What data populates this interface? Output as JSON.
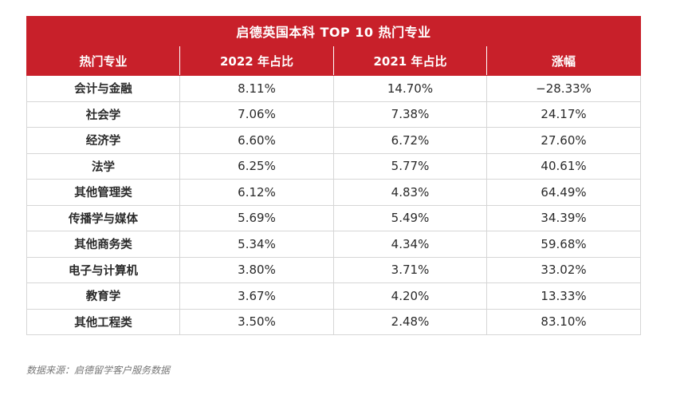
{
  "title": "启德英国本科 TOP 10 热门专业",
  "headers": [
    "热门专业",
    "2022 年占比",
    "2021 年占比",
    "涨幅"
  ],
  "rows": [
    [
      "会计与金融",
      "8.11%",
      "14.70%",
      "−28.33%"
    ],
    [
      "社会学",
      "7.06%",
      "7.38%",
      "24.17%"
    ],
    [
      "经济学",
      "6.60%",
      "6.72%",
      "27.60%"
    ],
    [
      "法学",
      "6.25%",
      "5.77%",
      "40.61%"
    ],
    [
      "其他管理类",
      "6.12%",
      "4.83%",
      "64.49%"
    ],
    [
      "传播学与媒体",
      "5.69%",
      "5.49%",
      "34.39%"
    ],
    [
      "其他商务类",
      "5.34%",
      "4.34%",
      "59.68%"
    ],
    [
      "电子与计算机",
      "3.80%",
      "3.71%",
      "33.02%"
    ],
    [
      "教育学",
      "3.67%",
      "4.20%",
      "13.33%"
    ],
    [
      "其他工程类",
      "3.50%",
      "2.48%",
      "83.10%"
    ]
  ],
  "source": "数据来源：启德留学客户服务数据",
  "colors": {
    "header_bg": "#c8202a",
    "header_text": "#ffffff",
    "border": "#d6d6d6"
  }
}
